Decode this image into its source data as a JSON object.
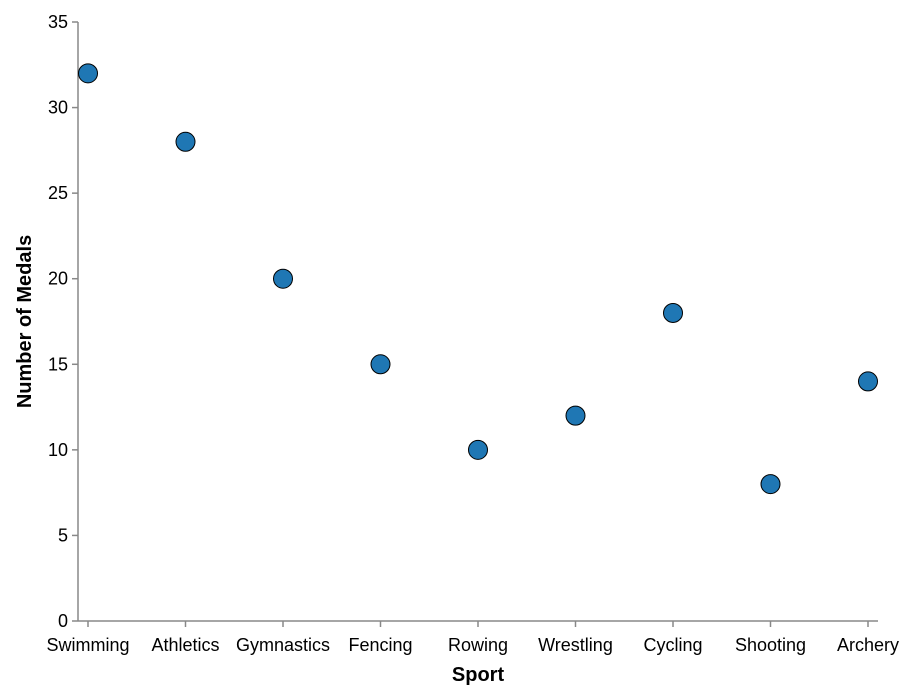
{
  "chart_data": {
    "type": "scatter",
    "categories": [
      "Swimming",
      "Athletics",
      "Gymnastics",
      "Fencing",
      "Rowing",
      "Wrestling",
      "Cycling",
      "Shooting",
      "Archery"
    ],
    "values": [
      32,
      28,
      20,
      15,
      10,
      12,
      18,
      8,
      14
    ],
    "xlabel": "Sport",
    "ylabel": "Number of Medals",
    "ylim": [
      0,
      35
    ],
    "yticks": [
      "0",
      "5",
      "10",
      "15",
      "20",
      "25",
      "30",
      "35"
    ],
    "grid": false,
    "colors": {
      "point_fill": "#1f77b4",
      "point_stroke": "#000000",
      "axis": "#888888"
    }
  }
}
